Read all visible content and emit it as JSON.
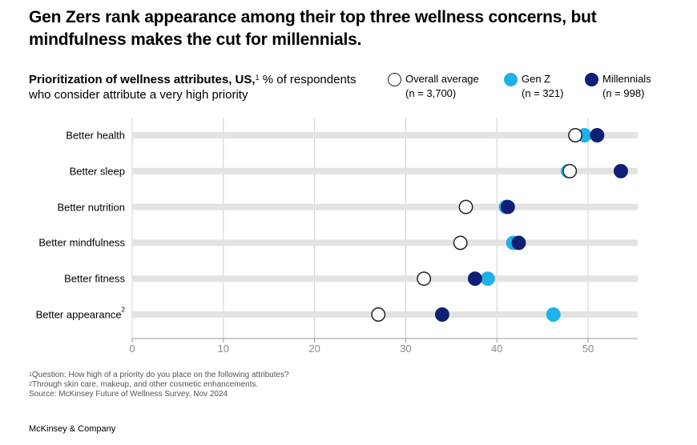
{
  "title": "Gen Zers rank appearance among their top three wellness concerns, but mindfulness makes the cut for millennials.",
  "subtitle": {
    "bold": "Prioritization of wellness attributes, US,",
    "sup": "1",
    "rest": " % of respondents who consider attribute a very high priority"
  },
  "legend": [
    {
      "name": "Overall average",
      "n": "(n = 3,700)",
      "color": "#ffffff",
      "stroke": "#222222"
    },
    {
      "name": "Gen Z",
      "n": "(n = 321)",
      "color": "#1fb1ea",
      "stroke": "#1fb1ea"
    },
    {
      "name": "Millennials",
      "n": "(n = 998)",
      "color": "#0f1f76",
      "stroke": "#0f1f76"
    }
  ],
  "chart_data": {
    "type": "scatter",
    "categories": [
      "Better health",
      "Better sleep",
      "Better nutrition",
      "Better mindfulness",
      "Better fitness",
      "Better appearance"
    ],
    "category_sups": [
      "",
      "",
      "",
      "",
      "",
      "2"
    ],
    "series": [
      {
        "name": "Overall average",
        "values": [
          48.6,
          48.0,
          36.6,
          36.0,
          32.0,
          27.0
        ]
      },
      {
        "name": "Gen Z",
        "values": [
          49.6,
          47.8,
          41.0,
          41.8,
          39.0,
          46.2
        ]
      },
      {
        "name": "Millennials",
        "values": [
          51.0,
          53.6,
          41.2,
          42.4,
          37.6,
          34.0
        ]
      }
    ],
    "xlim": [
      0,
      55
    ],
    "xticks": [
      "0",
      "10",
      "20",
      "30",
      "40",
      "50"
    ],
    "grid": true
  },
  "footnotes": [
    {
      "sup": "1",
      "text": "Question: How high of a priority do you place on the following attributes?"
    },
    {
      "sup": "2",
      "text": "Through skin care, makeup, and other cosmetic enhancements."
    },
    {
      "sup": "",
      "text": " Source: McKinsey Future of Wellness Survey, Nov 2024"
    }
  ],
  "brand": "McKinsey & Company",
  "colors": {
    "track": "#e3e3e3",
    "grid": "#d0d0d0",
    "axis": "#9a9a9a",
    "tick_label": "#8a8a8a"
  }
}
